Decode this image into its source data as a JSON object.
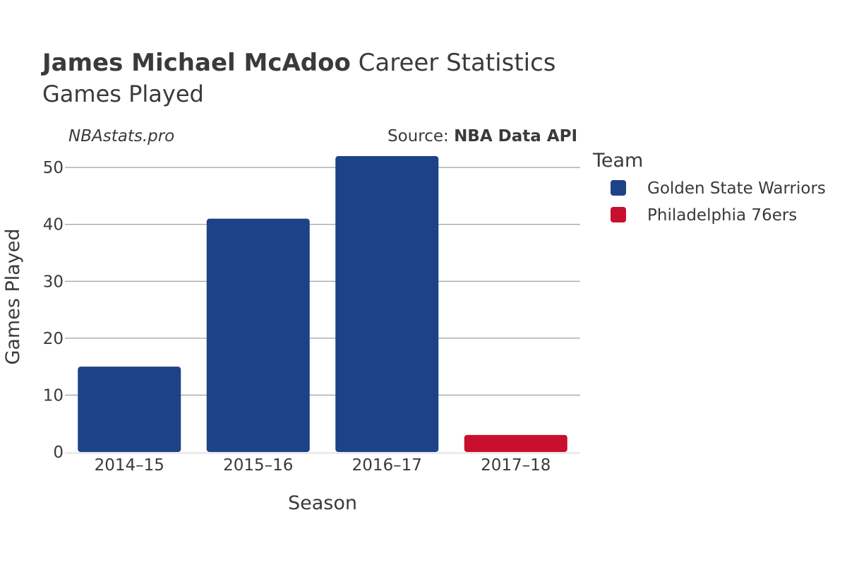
{
  "title": {
    "name": "James Michael McAdoo",
    "rest": " Career Statistics",
    "subtitle": "Games Played"
  },
  "brand": "NBAstats.pro",
  "source": {
    "label": "Source: ",
    "value": "NBA Data API"
  },
  "legend": {
    "title": "Team",
    "items": [
      {
        "label": "Golden State Warriors",
        "color": "#1d4287"
      },
      {
        "label": "Philadelphia 76ers",
        "color": "#c8102e"
      }
    ]
  },
  "chart_data": {
    "type": "bar",
    "xlabel": "Season",
    "ylabel": "Games Played",
    "ylim": [
      0,
      53
    ],
    "yticks": [
      0,
      10,
      20,
      30,
      40,
      50
    ],
    "categories": [
      "2014–15",
      "2015–16",
      "2016–17",
      "2017–18"
    ],
    "bars": [
      {
        "category": "2014–15",
        "team": "Golden State Warriors",
        "value": 15,
        "color": "#1d4287"
      },
      {
        "category": "2015–16",
        "team": "Golden State Warriors",
        "value": 41,
        "color": "#1d4287"
      },
      {
        "category": "2016–17",
        "team": "Golden State Warriors",
        "value": 52,
        "color": "#1d4287"
      },
      {
        "category": "2017–18",
        "team": "Philadelphia 76ers",
        "value": 3,
        "color": "#c8102e"
      }
    ],
    "grid": true,
    "legend_position": "right"
  }
}
